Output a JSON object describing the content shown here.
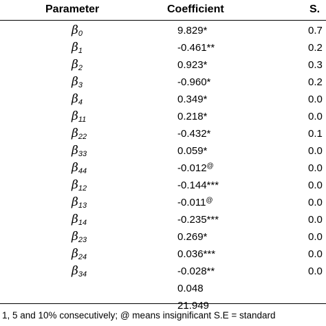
{
  "table": {
    "headers": {
      "parameter": "Parameter",
      "coefficient": "Coefficient",
      "se": "S."
    },
    "rows": [
      {
        "sym": "β",
        "sub": "0",
        "coef": "9.829",
        "sig": "*",
        "se": "0.7"
      },
      {
        "sym": "β",
        "sub": "1",
        "coef": "-0.461",
        "sig": "**",
        "se": "0.2"
      },
      {
        "sym": "β",
        "sub": "2",
        "coef": "0.923",
        "sig": "*",
        "se": "0.3"
      },
      {
        "sym": "β",
        "sub": "3",
        "coef": "-0.960",
        "sig": "*",
        "se": "0.2"
      },
      {
        "sym": "β",
        "sub": "4",
        "coef": "0.349",
        "sig": "*",
        "se": "0.0"
      },
      {
        "sym": "β",
        "sub": "11",
        "coef": "0.218",
        "sig": "*",
        "se": "0.0"
      },
      {
        "sym": "β",
        "sub": "22",
        "coef": "-0.432",
        "sig": "*",
        "se": "0.1"
      },
      {
        "sym": "β",
        "sub": "33",
        "coef": "0.059",
        "sig": "*",
        "se": "0.0"
      },
      {
        "sym": "β",
        "sub": "44",
        "coef": "-0.012",
        "sig": "@",
        "se": "0.0"
      },
      {
        "sym": "β",
        "sub": "12",
        "coef": "-0.144",
        "sig": "***",
        "se": "0.0"
      },
      {
        "sym": "β",
        "sub": "13",
        "coef": "-0.011",
        "sig": "@",
        "se": "0.0"
      },
      {
        "sym": "β",
        "sub": "14",
        "coef": "-0.235",
        "sig": "***",
        "se": "0.0"
      },
      {
        "sym": "β",
        "sub": "23",
        "coef": "0.269",
        "sig": "*",
        "se": "0.0"
      },
      {
        "sym": "β",
        "sub": "24",
        "coef": "0.036",
        "sig": "***",
        "se": "0.0"
      },
      {
        "sym": "β",
        "sub": "34",
        "coef": "-0.028",
        "sig": "**",
        "se": "0.0"
      },
      {
        "sym": "",
        "sub": "",
        "coef": "0.048",
        "sig": "",
        "se": ""
      },
      {
        "sym": "",
        "sub": "",
        "coef": "21.949",
        "sig": "",
        "se": ""
      }
    ]
  },
  "footnote": "1, 5 and 10% consecutively; @ means insignificant S.E = standard"
}
